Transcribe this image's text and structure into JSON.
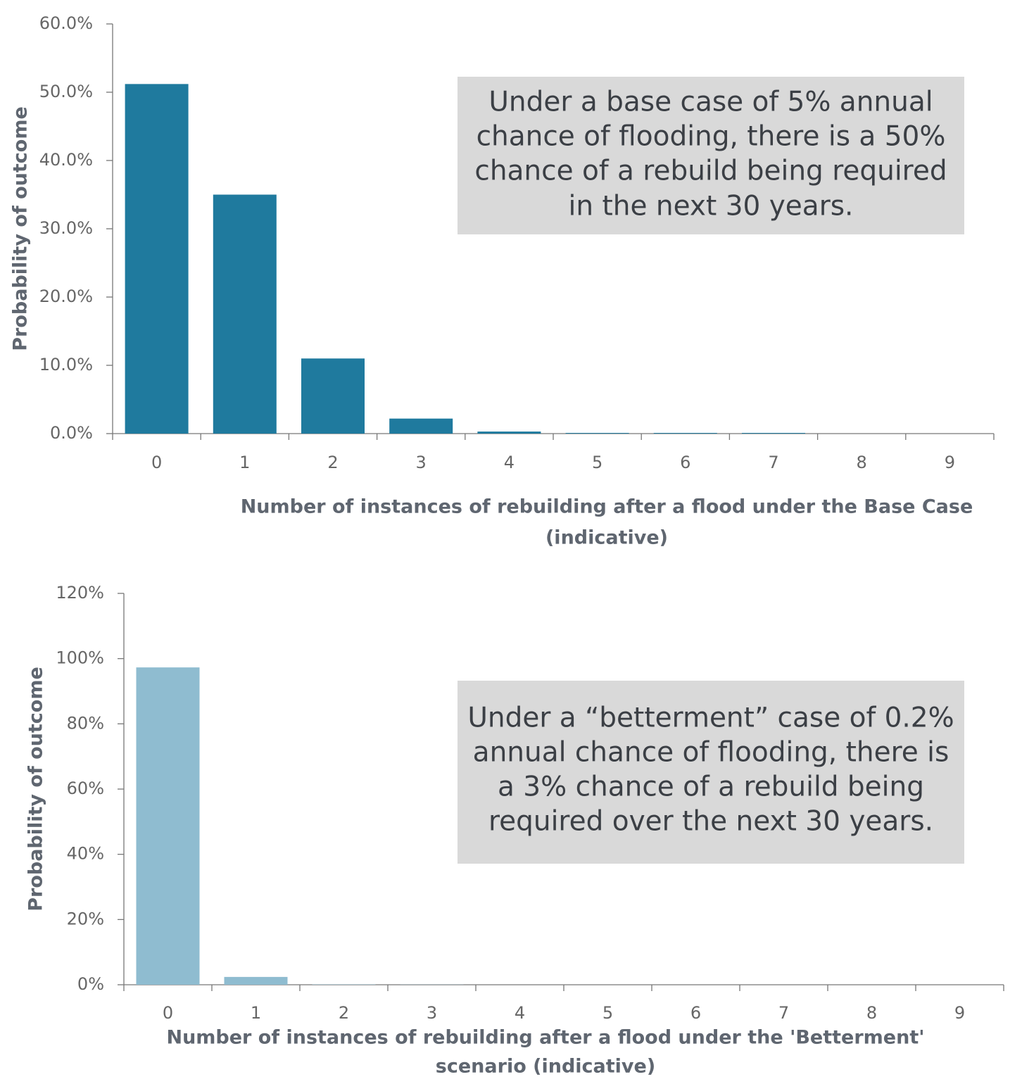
{
  "chart_data": [
    {
      "type": "bar",
      "y_label": "Probability of outcome",
      "x_label": [
        "Number of instances of rebuilding after a flood under the Base Case",
        "(indicative)"
      ],
      "annotation": [
        "Under a base case of 5% annual",
        "chance of flooding, there is a 50%",
        "chance of a rebuild being required",
        "in the next 30 years."
      ],
      "categories": [
        "0",
        "1",
        "2",
        "3",
        "4",
        "5",
        "6",
        "7",
        "8",
        "9"
      ],
      "values": [
        51.2,
        35.0,
        11.0,
        2.2,
        0.3,
        0.1,
        0.1,
        0.1,
        0,
        0
      ],
      "color": "#1f7a9e",
      "ylim": [
        0,
        60
      ],
      "yticks": [
        {
          "value": 0,
          "label": "0.0%"
        },
        {
          "value": 10,
          "label": "10.0%"
        },
        {
          "value": 20,
          "label": "20.0%"
        },
        {
          "value": 30,
          "label": "30.0%"
        },
        {
          "value": 40,
          "label": "40.0%"
        },
        {
          "value": 50,
          "label": "50.0%"
        },
        {
          "value": 60,
          "label": "60.0%"
        }
      ],
      "grid": false
    },
    {
      "type": "bar",
      "y_label": "Probability of outcome",
      "x_label": [
        "Number of instances of rebuilding after a flood under the 'Betterment'",
        "scenario (indicative)"
      ],
      "annotation": [
        "Under a “betterment” case of 0.2%",
        "annual chance of flooding, there is",
        "a 3% chance of a rebuild being",
        "required over the next 30 years."
      ],
      "categories": [
        "0",
        "1",
        "2",
        "3",
        "4",
        "5",
        "6",
        "7",
        "8",
        "9"
      ],
      "values": [
        97.3,
        2.4,
        0.1,
        0.05,
        0,
        0,
        0,
        0,
        0,
        0
      ],
      "color": "#8fbcd0",
      "ylim": [
        0,
        120
      ],
      "yticks": [
        {
          "value": 0,
          "label": "0%"
        },
        {
          "value": 20,
          "label": "20%"
        },
        {
          "value": 40,
          "label": "40%"
        },
        {
          "value": 60,
          "label": "60%"
        },
        {
          "value": 80,
          "label": "80%"
        },
        {
          "value": 100,
          "label": "100%"
        },
        {
          "value": 120,
          "label": "120%"
        }
      ],
      "grid": false
    }
  ]
}
